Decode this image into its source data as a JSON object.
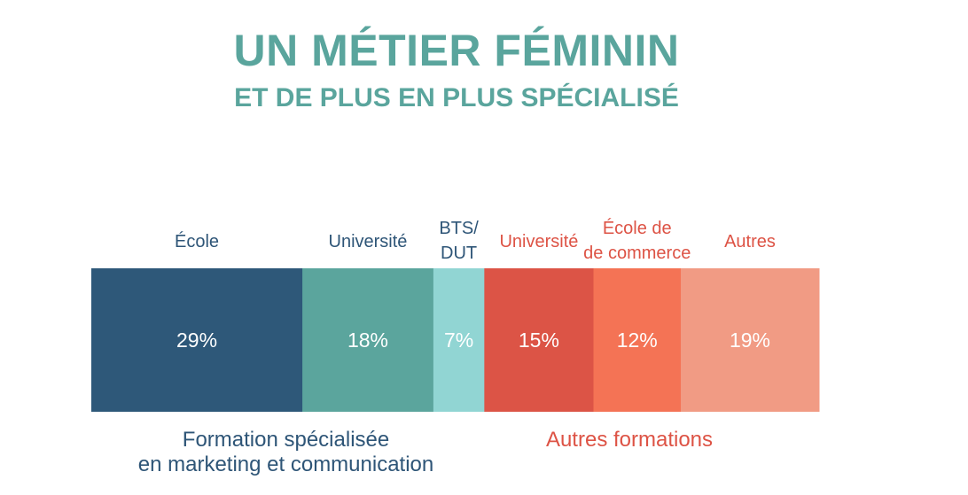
{
  "header": {
    "title": "UN MÉTIER FÉMININ",
    "subtitle": "ET DE PLUS EN PLUS SPÉCIALISÉ"
  },
  "colors": {
    "title": "#5aa59d",
    "specialized_text": "#2e5577",
    "other_text": "#dd5345"
  },
  "chart_data": {
    "type": "bar",
    "orientation": "horizontal",
    "stacked": true,
    "unit": "%",
    "total": 100,
    "legend": "none",
    "grid": false,
    "categories": [
      {
        "label": [
          "École"
        ],
        "value": 29,
        "display": "29%",
        "group": "specialized",
        "color": "#2e5879"
      },
      {
        "label": [
          "Université"
        ],
        "value": 18,
        "display": "18%",
        "group": "specialized",
        "color": "#5ba59d"
      },
      {
        "label": [
          "BTS/",
          "DUT"
        ],
        "value": 7,
        "display": "7%",
        "group": "specialized",
        "color": "#91d5d3"
      },
      {
        "label": [
          "Université"
        ],
        "value": 15,
        "display": "15%",
        "group": "other",
        "color": "#dc5446"
      },
      {
        "label": [
          "École de",
          "de commerce"
        ],
        "value": 12,
        "display": "12%",
        "group": "other",
        "color": "#f47355"
      },
      {
        "label": [
          "Autres"
        ],
        "value": 19,
        "display": "19%",
        "group": "other",
        "color": "#f19b84"
      }
    ],
    "groups": {
      "specialized": [
        "Formation spécialisée",
        "en marketing et communication"
      ],
      "other": [
        "Autres formations"
      ]
    }
  }
}
